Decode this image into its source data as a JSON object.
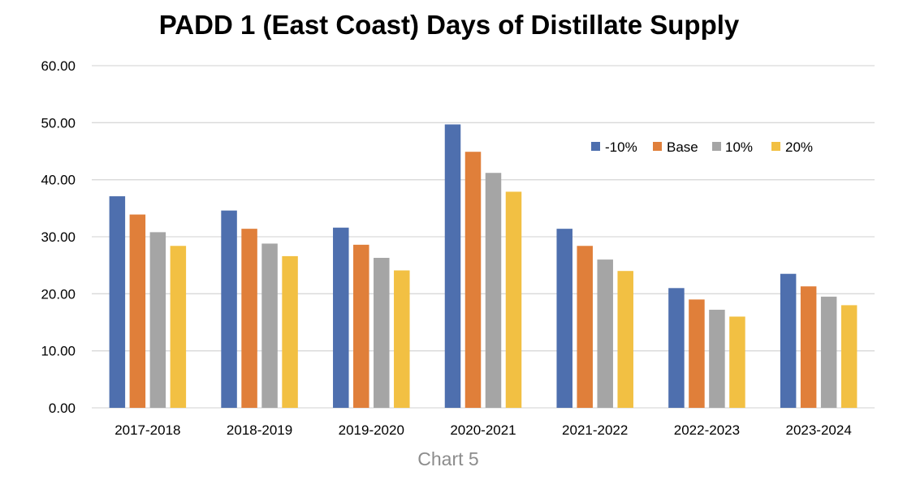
{
  "chart_data": {
    "type": "bar",
    "title": "PADD 1 (East Coast) Days of Distillate Supply",
    "xlabel": "",
    "ylabel": "",
    "ylim": [
      0,
      60
    ],
    "yticks": [
      "0.00",
      "10.00",
      "20.00",
      "30.00",
      "40.00",
      "50.00",
      "60.00"
    ],
    "grid": true,
    "legend_position": "top-right",
    "categories": [
      "2017-2018",
      "2018-2019",
      "2019-2020",
      "2020-2021",
      "2021-2022",
      "2022-2023",
      "2023-2024"
    ],
    "series": [
      {
        "name": "-10%",
        "color": "#4e6fae",
        "values": [
          37.1,
          34.6,
          31.6,
          49.7,
          31.4,
          21.0,
          23.5
        ]
      },
      {
        "name": "Base",
        "color": "#e07f3a",
        "values": [
          33.9,
          31.4,
          28.6,
          44.9,
          28.4,
          19.0,
          21.3
        ]
      },
      {
        "name": "10%",
        "color": "#a5a5a5",
        "values": [
          30.8,
          28.8,
          26.3,
          41.2,
          26.0,
          17.2,
          19.5
        ]
      },
      {
        "name": "20%",
        "color": "#f2c043",
        "values": [
          28.4,
          26.6,
          24.1,
          37.9,
          24.0,
          16.0,
          18.0
        ]
      }
    ]
  },
  "caption": "Chart 5"
}
